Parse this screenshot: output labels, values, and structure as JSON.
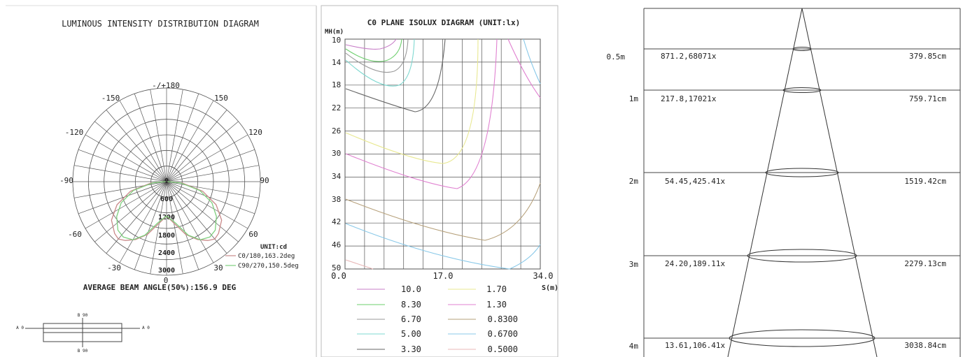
{
  "polar_panel": {
    "title": "LUMINOUS INTENSITY DISTRIBUTION DIAGRAM",
    "angle_labels": {
      "top": "-/+180",
      "tl": "-150",
      "tr": "150",
      "l120": "-120",
      "r120": "120",
      "l90": "-90",
      "r90": "90",
      "l60": "-60",
      "r60": "60",
      "l30": "-30",
      "r30": "30",
      "bottom": "0"
    },
    "radial_labels": [
      "0",
      "600",
      "1200",
      "1800",
      "2400",
      "3000"
    ],
    "unit": "UNIT:cd",
    "legend": [
      {
        "label": "C0/180,163.2deg",
        "color": "#c98a8a"
      },
      {
        "label": "C90/270,150.5deg",
        "color": "#7ed07e"
      }
    ],
    "beam_angle": "AVERAGE BEAM ANGLE(50%):156.9 DEG",
    "key_labels": {
      "top": "B 90",
      "bottom": "B 90",
      "left": "A 0",
      "right": "A 0"
    },
    "chart_data": {
      "type": "polar",
      "series": [
        {
          "name": "C0/180,163.2deg",
          "color": "#c98a8a",
          "angles": [
            -95,
            -85,
            -75,
            -65,
            -55,
            -45,
            -40,
            -35,
            -28,
            -20,
            -10,
            0,
            10,
            20,
            28,
            35,
            40,
            45,
            55,
            65,
            75,
            85,
            95
          ],
          "values": [
            30,
            500,
            1200,
            1750,
            2150,
            2350,
            2400,
            2300,
            2100,
            1800,
            1350,
            1100,
            1350,
            1800,
            2100,
            2300,
            2400,
            2350,
            2150,
            1750,
            1200,
            500,
            30
          ]
        },
        {
          "name": "C90/270,150.5deg",
          "color": "#7ed07e",
          "angles": [
            -95,
            -85,
            -75,
            -65,
            -55,
            -45,
            -38,
            -30,
            -22,
            -12,
            0,
            12,
            22,
            30,
            38,
            45,
            55,
            65,
            75,
            85,
            95
          ],
          "values": [
            30,
            450,
            1100,
            1600,
            1950,
            2200,
            2250,
            2150,
            1850,
            1350,
            1100,
            1350,
            1850,
            2150,
            2250,
            2200,
            1950,
            1600,
            1100,
            450,
            30
          ]
        }
      ]
    }
  },
  "isolux_panel": {
    "title": "C0 PLANE ISOLUX DIAGRAM (UNIT:lx)",
    "y_axis_label": "MH(m)",
    "x_axis_label": "S(m)",
    "y_ticks": [
      "10",
      "14",
      "18",
      "22",
      "26",
      "30",
      "34",
      "38",
      "42",
      "46",
      "50"
    ],
    "x_ticks": [
      "0.0",
      "17.0",
      "34.0"
    ],
    "legend": [
      {
        "label": "10.0",
        "color": "#c77dc7"
      },
      {
        "label": "1.70",
        "color": "#e8e890"
      },
      {
        "label": "8.30",
        "color": "#6ecf6e"
      },
      {
        "label": "1.30",
        "color": "#e080d0"
      },
      {
        "label": "6.70",
        "color": "#999999"
      },
      {
        "label": "0.8300",
        "color": "#b6a07a"
      },
      {
        "label": "5.00",
        "color": "#7ed8d0"
      },
      {
        "label": "0.6700",
        "color": "#88c8e8"
      },
      {
        "label": "3.30",
        "color": "#666666"
      },
      {
        "label": "0.5000",
        "color": "#e8b8b8"
      }
    ]
  },
  "cone_panel": {
    "rows": [
      {
        "height": "0.5m",
        "lux": "871.2,68071x",
        "diameter": "379.85cm"
      },
      {
        "height": "1m",
        "lux": "217.8,17021x",
        "diameter": "759.71cm"
      },
      {
        "height": "2m",
        "lux": "54.45,425.41x",
        "diameter": "1519.42cm"
      },
      {
        "height": "3m",
        "lux": "24.20,189.11x",
        "diameter": "2279.13cm"
      },
      {
        "height": "4m",
        "lux": "13.61,106.41x",
        "diameter": "3038.84cm"
      }
    ]
  }
}
